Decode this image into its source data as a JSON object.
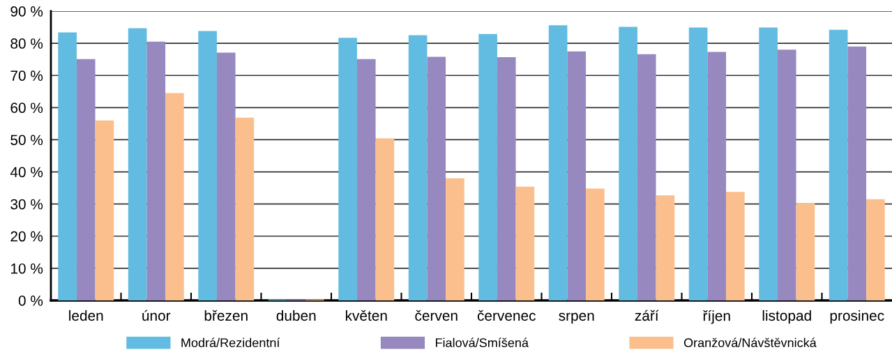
{
  "chart_data": {
    "type": "bar",
    "categories": [
      "leden",
      "únor",
      "březen",
      "duben",
      "květen",
      "červen",
      "červenec",
      "srpen",
      "září",
      "říjen",
      "listopad",
      "prosinec"
    ],
    "series": [
      {
        "name": "Modrá/Rezidentní",
        "color": "#62bbe0",
        "values": [
          83.4,
          84.7,
          83.8,
          0.3,
          81.7,
          82.5,
          82.9,
          85.6,
          85.1,
          84.9,
          84.9,
          84.2
        ]
      },
      {
        "name": "Fialová/Smíšená",
        "color": "#9788c0",
        "values": [
          75.1,
          80.5,
          77.1,
          0.3,
          75.1,
          75.8,
          75.7,
          77.5,
          76.6,
          77.3,
          78.0,
          79.0
        ]
      },
      {
        "name": "Oranžová/Návštěvnická",
        "color": "#fbbf8e",
        "values": [
          56.0,
          64.5,
          56.9,
          0.3,
          50.4,
          38.0,
          35.4,
          34.8,
          32.7,
          33.8,
          30.2,
          31.5
        ]
      }
    ],
    "ylim": [
      0,
      90
    ],
    "yticks": [
      {
        "value": 0,
        "label": "0 %"
      },
      {
        "value": 10,
        "label": "10 %"
      },
      {
        "value": 20,
        "label": "20 %"
      },
      {
        "value": 30,
        "label": "30 %"
      },
      {
        "value": 40,
        "label": "40 %"
      },
      {
        "value": 50,
        "label": "50 %"
      },
      {
        "value": 60,
        "label": "60 %"
      },
      {
        "value": 70,
        "label": "70 %"
      },
      {
        "value": 80,
        "label": "80 %"
      },
      {
        "value": 90,
        "label": "90 %"
      }
    ],
    "grid": "y",
    "legend": "bottom"
  }
}
